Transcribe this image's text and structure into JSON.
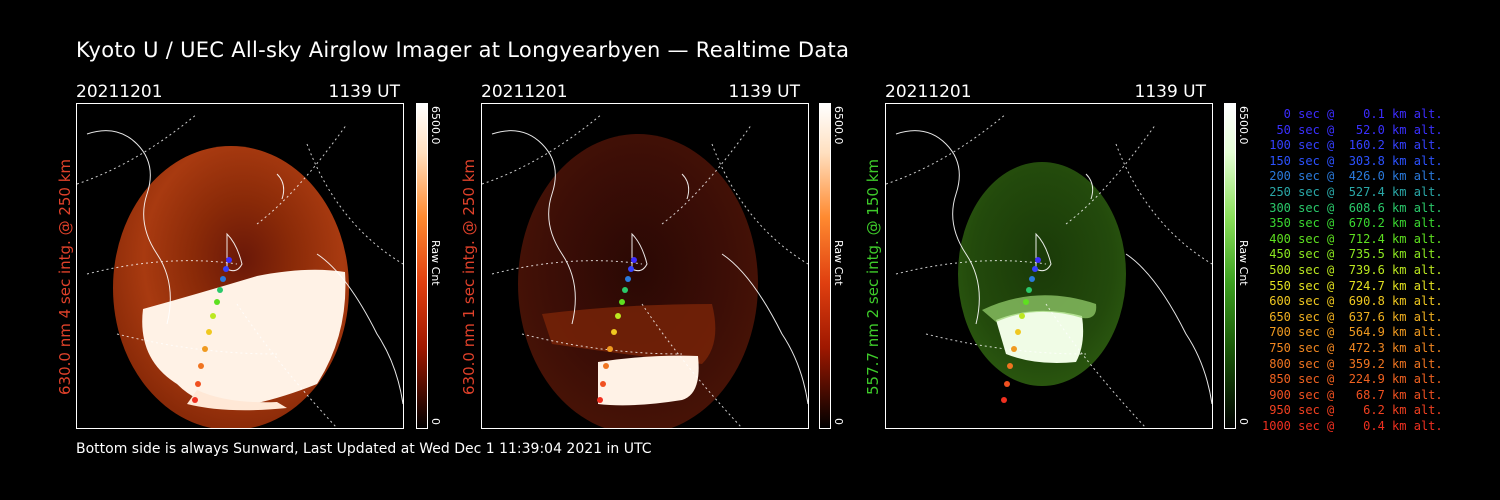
{
  "title": "Kyoto U / UEC All-sky Airglow Imager at Longyearbyen — Realtime Data",
  "panels": [
    {
      "date": "20211201",
      "time": "1139 UT",
      "side_label": "630.0 nm  4 sec intg. @ 250 km",
      "side_color": "#e0412a",
      "cbar_max": "6500.0",
      "cbar_min": "0",
      "cbar_unit": "Raw Cnt",
      "colormap": "red"
    },
    {
      "date": "20211201",
      "time": "1139 UT",
      "side_label": "630.0 nm  1 sec intg. @ 250 km",
      "side_color": "#e0412a",
      "cbar_max": "6500.0",
      "cbar_min": "0",
      "cbar_unit": "Raw Cnt",
      "colormap": "red"
    },
    {
      "date": "20211201",
      "time": "1139 UT",
      "side_label": "557.7 nm  2 sec intg. @ 150 km",
      "side_color": "#3ecb2a",
      "cbar_max": "6500.0",
      "cbar_min": "0",
      "cbar_unit": "Raw Cnt",
      "colormap": "green"
    }
  ],
  "footer": "Bottom side is always Sunward, Last Updated at Wed Dec  1 11:39:04 2021 in UTC",
  "legend": [
    {
      "text": "   0 sec @    0.1 km alt.",
      "color": "#3c2cff"
    },
    {
      "text": "  50 sec @   52.0 km alt.",
      "color": "#3a30ff"
    },
    {
      "text": " 100 sec @  160.2 km alt.",
      "color": "#3440ff"
    },
    {
      "text": " 150 sec @  303.8 km alt.",
      "color": "#2c52ff"
    },
    {
      "text": " 200 sec @  426.0 km alt.",
      "color": "#2a7adc"
    },
    {
      "text": " 250 sec @  527.4 km alt.",
      "color": "#2aa8a8"
    },
    {
      "text": " 300 sec @  608.6 km alt.",
      "color": "#2ac86a"
    },
    {
      "text": " 350 sec @  670.2 km alt.",
      "color": "#3ad830"
    },
    {
      "text": " 400 sec @  712.4 km alt.",
      "color": "#5ee020"
    },
    {
      "text": " 450 sec @  735.5 km alt.",
      "color": "#8ce820"
    },
    {
      "text": " 500 sec @  739.6 km alt.",
      "color": "#bce820"
    },
    {
      "text": " 550 sec @  724.7 km alt.",
      "color": "#e2e020"
    },
    {
      "text": " 600 sec @  690.8 km alt.",
      "color": "#f0c820"
    },
    {
      "text": " 650 sec @  637.6 km alt.",
      "color": "#f0b020"
    },
    {
      "text": " 700 sec @  564.9 km alt.",
      "color": "#f09a20"
    },
    {
      "text": " 750 sec @  472.3 km alt.",
      "color": "#f08620"
    },
    {
      "text": " 800 sec @  359.2 km alt.",
      "color": "#f07420"
    },
    {
      "text": " 850 sec @  224.9 km alt.",
      "color": "#f06220"
    },
    {
      "text": " 900 sec @   68.7 km alt.",
      "color": "#f05020"
    },
    {
      "text": " 950 sec @    6.2 km alt.",
      "color": "#f04020"
    },
    {
      "text": "1000 sec @    0.4 km alt.",
      "color": "#f03020"
    }
  ]
}
